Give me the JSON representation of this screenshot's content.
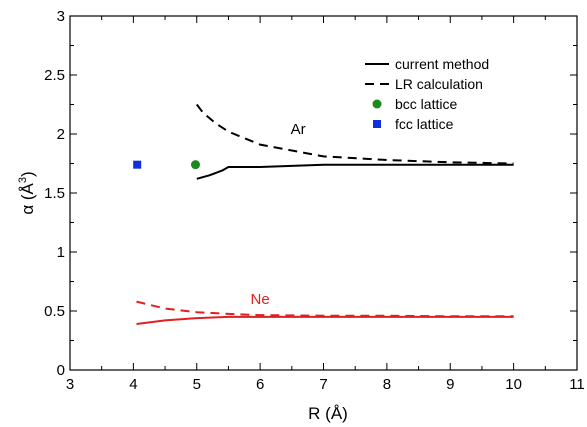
{
  "chart_data": {
    "type": "line",
    "xlabel": "R (Å)",
    "ylabel_main": "α (Å",
    "ylabel_sup": "3",
    "ylabel_close": ")",
    "xlim": [
      3,
      11
    ],
    "ylim": [
      0,
      3
    ],
    "x_ticks": [
      3,
      4,
      5,
      6,
      7,
      8,
      9,
      10,
      11
    ],
    "y_ticks": [
      0,
      0.5,
      1,
      1.5,
      2,
      2.5,
      3
    ],
    "x_tick_labels": [
      "3",
      "4",
      "5",
      "6",
      "7",
      "8",
      "9",
      "10",
      "11"
    ],
    "y_tick_labels": [
      "0",
      "0.5",
      "1",
      "1.5",
      "2",
      "2.5",
      "3"
    ],
    "grid": false,
    "legend_placement": "top-right",
    "legend": [
      {
        "label": "current method",
        "style": "solid-line"
      },
      {
        "label": "LR calculation",
        "style": "dashed-line"
      },
      {
        "label": "bcc lattice",
        "style": "circle",
        "color": "#1a8a1a"
      },
      {
        "label": "fcc lattice",
        "style": "square",
        "color": "#1030e0"
      }
    ],
    "annotations": [
      {
        "text": "Ar",
        "x": 6.6,
        "y": 2.0,
        "color": "#000000"
      },
      {
        "text": "Ne",
        "x": 6.0,
        "y": 0.56,
        "color": "#e02020"
      }
    ],
    "series": [
      {
        "group": "Ar",
        "method": "current method",
        "style": "solid",
        "color": "#000000",
        "x": [
          5.0,
          5.2,
          5.4,
          5.5,
          6.0,
          7.0,
          8.0,
          9.0,
          10.0
        ],
        "y": [
          1.62,
          1.65,
          1.69,
          1.72,
          1.72,
          1.74,
          1.74,
          1.74,
          1.74
        ]
      },
      {
        "group": "Ar",
        "method": "LR calculation",
        "style": "dashed",
        "color": "#000000",
        "x": [
          5.0,
          5.1,
          5.3,
          5.5,
          6.0,
          6.5,
          7.0,
          8.0,
          9.0,
          10.0
        ],
        "y": [
          2.25,
          2.18,
          2.09,
          2.02,
          1.91,
          1.86,
          1.81,
          1.78,
          1.76,
          1.75
        ]
      },
      {
        "group": "Ne",
        "method": "current method",
        "style": "solid",
        "color": "#e02020",
        "x": [
          4.05,
          4.5,
          5.0,
          5.5,
          6.0,
          7.0,
          8.0,
          9.0,
          10.0
        ],
        "y": [
          0.39,
          0.42,
          0.44,
          0.45,
          0.45,
          0.45,
          0.45,
          0.45,
          0.45
        ]
      },
      {
        "group": "Ne",
        "method": "LR calculation",
        "style": "dashed",
        "color": "#e02020",
        "x": [
          4.05,
          4.5,
          5.0,
          5.5,
          6.0,
          7.0,
          8.0,
          9.0,
          10.0
        ],
        "y": [
          0.58,
          0.52,
          0.49,
          0.475,
          0.465,
          0.46,
          0.46,
          0.455,
          0.455
        ]
      }
    ],
    "points": [
      {
        "label": "bcc lattice",
        "x": 4.98,
        "y": 1.74,
        "marker": "circle",
        "color": "#1a8a1a"
      },
      {
        "label": "fcc lattice",
        "x": 4.06,
        "y": 1.74,
        "marker": "square",
        "color": "#1030e0"
      }
    ]
  }
}
